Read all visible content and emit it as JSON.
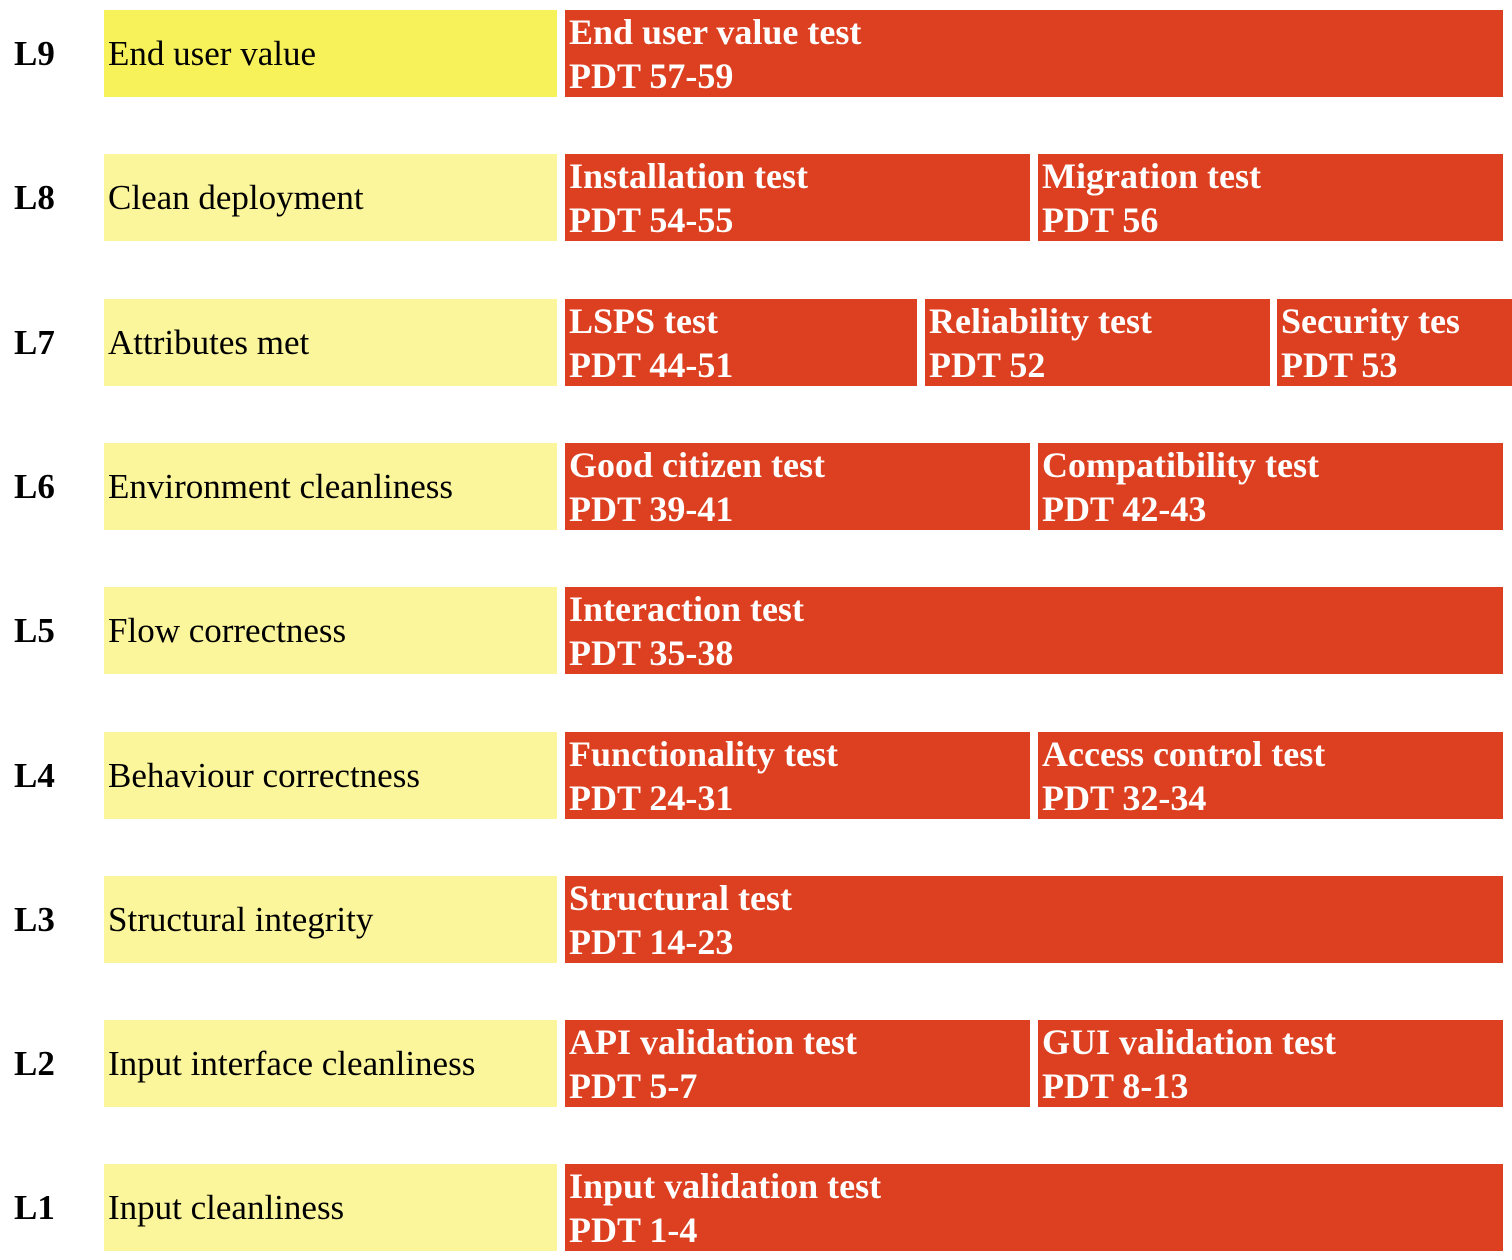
{
  "rows": [
    {
      "level": "L9",
      "label": "End user value",
      "tests": [
        {
          "name": "End user value test",
          "pdt": "PDT 57-59"
        }
      ]
    },
    {
      "level": "L8",
      "label": "Clean deployment",
      "tests": [
        {
          "name": "Installation test",
          "pdt": "PDT 54-55"
        },
        {
          "name": "Migration test",
          "pdt": "PDT 56"
        }
      ]
    },
    {
      "level": "L7",
      "label": "Attributes met",
      "tests": [
        {
          "name": "LSPS test",
          "pdt": "PDT 44-51"
        },
        {
          "name": "Reliability test",
          "pdt": "PDT 52"
        },
        {
          "name": "Security tes",
          "pdt": "PDT 53"
        }
      ]
    },
    {
      "level": "L6",
      "label": "Environment cleanliness",
      "tests": [
        {
          "name": "Good citizen test",
          "pdt": "PDT 39-41"
        },
        {
          "name": "Compatibility test",
          "pdt": "PDT 42-43"
        }
      ]
    },
    {
      "level": "L5",
      "label": "Flow correctness",
      "tests": [
        {
          "name": "Interaction test",
          "pdt": "PDT 35-38"
        }
      ]
    },
    {
      "level": "L4",
      "label": "Behaviour correctness",
      "tests": [
        {
          "name": "Functionality test",
          "pdt": "PDT 24-31"
        },
        {
          "name": "Access control test",
          "pdt": "PDT 32-34"
        }
      ]
    },
    {
      "level": "L3",
      "label": "Structural integrity",
      "tests": [
        {
          "name": "Structural test",
          "pdt": "PDT 14-23"
        }
      ]
    },
    {
      "level": "L2",
      "label": "Input interface cleanliness",
      "tests": [
        {
          "name": "API validation test",
          "pdt": "PDT 5-7"
        },
        {
          "name": "GUI validation test",
          "pdt": "PDT 8-13"
        }
      ]
    },
    {
      "level": "L1",
      "label": "Input cleanliness",
      "tests": [
        {
          "name": "Input validation test",
          "pdt": "PDT 1-4"
        }
      ]
    }
  ]
}
